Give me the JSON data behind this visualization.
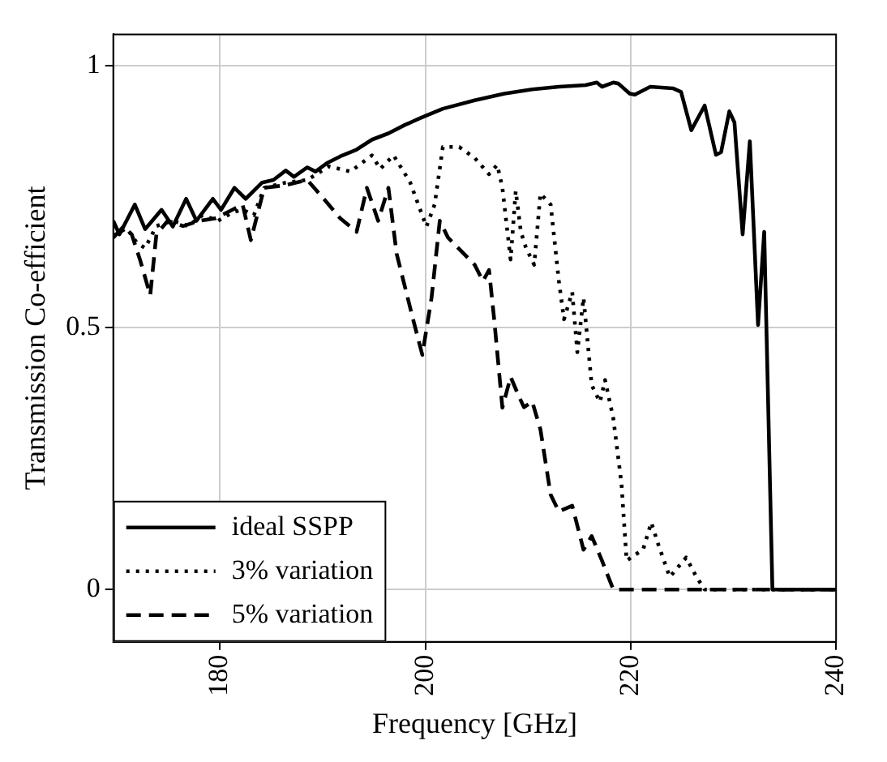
{
  "chart_data": {
    "type": "line",
    "xlabel": "Frequency [GHz]",
    "ylabel": "Transmission Co-efficient",
    "xlim": [
      169.6,
      240
    ],
    "xticks": [
      180,
      200,
      220,
      240
    ],
    "ylim": [
      -0.1,
      1.06
    ],
    "yticks": [
      0,
      0.5,
      1
    ],
    "grid": true,
    "legend": "bottom left",
    "marker": "none",
    "series": [
      {
        "name": "ideal SSPP",
        "color": "#000000",
        "line_style": "solid",
        "x": [
          169.6,
          170.2,
          171.7,
          172.7,
          174.3,
          175.4,
          176.7,
          177.7,
          179.3,
          180.1,
          181.4,
          182.5,
          184.1,
          185.2,
          186.4,
          187.2,
          188.5,
          189.3,
          190.4,
          191.7,
          193.3,
          194.8,
          196.4,
          198.0,
          199.6,
          201.7,
          204.8,
          207.7,
          210.4,
          213.0,
          215.6,
          216.7,
          217.2,
          218.3,
          218.8,
          219.9,
          220.4,
          221.9,
          224.1,
          224.9,
          225.9,
          227.2,
          228.3,
          228.8,
          229.6,
          230.1,
          230.9,
          231.6,
          232.4,
          233.0,
          233.8,
          240
        ],
        "values": [
          0.704,
          0.678,
          0.735,
          0.688,
          0.725,
          0.693,
          0.746,
          0.704,
          0.746,
          0.725,
          0.767,
          0.746,
          0.777,
          0.782,
          0.8,
          0.788,
          0.806,
          0.798,
          0.814,
          0.827,
          0.84,
          0.859,
          0.871,
          0.887,
          0.901,
          0.918,
          0.934,
          0.947,
          0.955,
          0.96,
          0.963,
          0.968,
          0.96,
          0.968,
          0.966,
          0.947,
          0.945,
          0.96,
          0.957,
          0.95,
          0.877,
          0.924,
          0.83,
          0.835,
          0.913,
          0.892,
          0.678,
          0.856,
          0.505,
          0.683,
          0,
          0
        ]
      },
      {
        "name": "3% variation",
        "color": "#000000",
        "line_style": "dotted",
        "x": [
          169.6,
          170.9,
          171.9,
          172.7,
          173.8,
          175.4,
          176.9,
          178.3,
          179.8,
          181.2,
          182.2,
          183.3,
          184.3,
          186.4,
          188.5,
          190.6,
          192.7,
          194.8,
          195.6,
          196.9,
          198.5,
          200.1,
          200.9,
          201.7,
          203.3,
          204.8,
          206.2,
          207.0,
          207.5,
          208.3,
          208.8,
          209.3,
          209.8,
          210.6,
          211.2,
          212.2,
          213.0,
          213.5,
          214.3,
          214.8,
          215.4,
          216.2,
          217.0,
          217.5,
          218.3,
          219.1,
          219.6,
          220.4,
          221.2,
          222.0,
          222.7,
          223.8,
          225.4,
          226.4,
          227.2,
          240
        ],
        "values": [
          0.675,
          0.69,
          0.662,
          0.652,
          0.694,
          0.704,
          0.694,
          0.715,
          0.704,
          0.72,
          0.725,
          0.715,
          0.767,
          0.777,
          0.782,
          0.808,
          0.798,
          0.829,
          0.803,
          0.829,
          0.778,
          0.693,
          0.735,
          0.845,
          0.845,
          0.824,
          0.793,
          0.811,
          0.767,
          0.63,
          0.761,
          0.683,
          0.652,
          0.62,
          0.756,
          0.735,
          0.589,
          0.516,
          0.568,
          0.453,
          0.557,
          0.39,
          0.358,
          0.4,
          0.327,
          0.202,
          0.055,
          0.066,
          0.076,
          0.128,
          0.085,
          0.024,
          0.061,
          0.024,
          0,
          0
        ]
      },
      {
        "name": "5% variation",
        "color": "#000000",
        "line_style": "dashed",
        "x": [
          169.6,
          170.6,
          171.4,
          172.2,
          173.2,
          173.8,
          174.9,
          176.4,
          178.0,
          179.6,
          181.2,
          182.2,
          183.0,
          184.3,
          186.4,
          188.5,
          190.1,
          191.7,
          193.3,
          194.3,
          195.4,
          196.4,
          197.2,
          198.8,
          199.7,
          200.6,
          201.4,
          202.2,
          204.8,
          205.6,
          206.2,
          206.7,
          207.5,
          208.3,
          209.1,
          209.6,
          210.4,
          211.2,
          212.2,
          213.0,
          214.3,
          215.4,
          216.2,
          217.2,
          218.3,
          240
        ],
        "values": [
          0.672,
          0.693,
          0.678,
          0.63,
          0.562,
          0.678,
          0.704,
          0.694,
          0.704,
          0.709,
          0.725,
          0.735,
          0.667,
          0.767,
          0.772,
          0.782,
          0.746,
          0.709,
          0.683,
          0.767,
          0.704,
          0.767,
          0.641,
          0.516,
          0.448,
          0.557,
          0.704,
          0.672,
          0.62,
          0.589,
          0.61,
          0.516,
          0.347,
          0.406,
          0.369,
          0.348,
          0.359,
          0.306,
          0.181,
          0.149,
          0.16,
          0.076,
          0.102,
          0.055,
          0,
          0
        ]
      }
    ]
  }
}
